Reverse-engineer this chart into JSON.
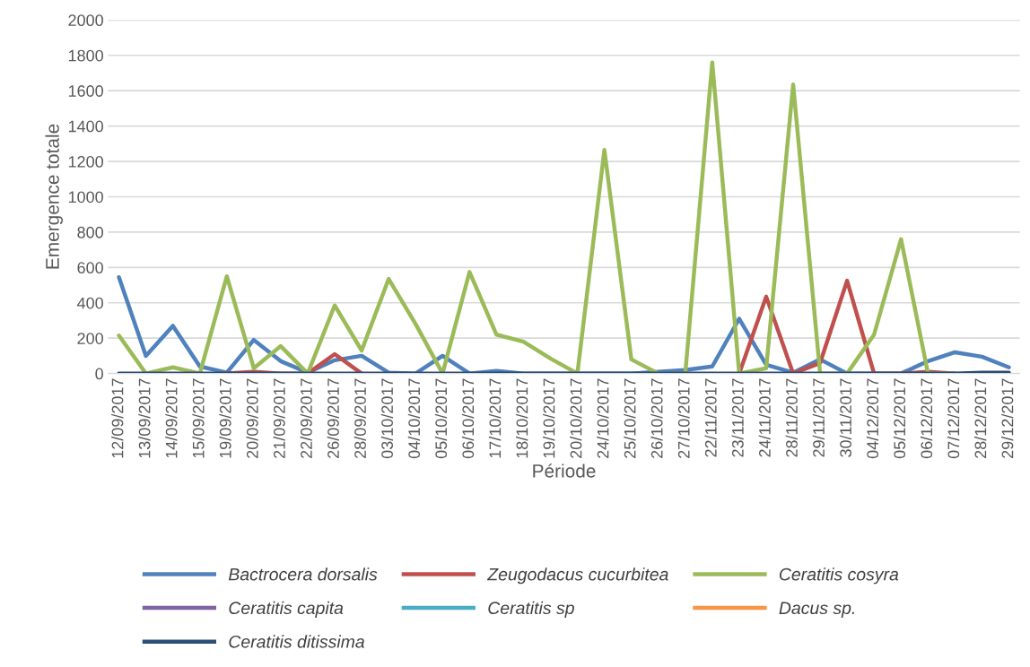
{
  "chart_data": {
    "type": "line",
    "xlabel": "Période",
    "ylabel": "Emergence totale",
    "categories": [
      "12/09/2017",
      "13/09/2017",
      "14/09/2017",
      "15/09/2017",
      "19/09/2017",
      "20/09/2017",
      "21/09/2017",
      "22/09/2017",
      "26/09/2017",
      "28/09/2017",
      "03/10/2017",
      "04/10/2017",
      "05/10/2017",
      "06/10/2017",
      "17/10/2017",
      "18/10/2017",
      "19/10/2017",
      "20/10/2017",
      "24/10/2017",
      "25/10/2017",
      "26/10/2017",
      "27/10/2017",
      "22/11/2017",
      "23/11/2017",
      "24/11/2017",
      "28/11/2017",
      "29/11/2017",
      "30/11/2017",
      "04/12/2017",
      "05/12/2017",
      "06/12/2017",
      "07/12/2017",
      "28/12/2017",
      "29/12/2017"
    ],
    "series": [
      {
        "name": "Bactrocera dorsalis",
        "color": "#4f81bd",
        "values": [
          545,
          100,
          270,
          40,
          5,
          190,
          70,
          5,
          75,
          100,
          5,
          0,
          100,
          0,
          15,
          0,
          0,
          0,
          0,
          0,
          10,
          20,
          40,
          310,
          50,
          5,
          80,
          0,
          0,
          0,
          70,
          120,
          95,
          35
        ]
      },
      {
        "name": "Zeugodacus cucurbitea",
        "color": "#c0504d",
        "values": [
          null,
          null,
          null,
          null,
          0,
          10,
          0,
          0,
          110,
          0,
          null,
          null,
          null,
          null,
          null,
          null,
          null,
          null,
          null,
          null,
          null,
          null,
          null,
          0,
          435,
          0,
          60,
          525,
          0,
          0,
          10,
          0,
          null,
          null
        ]
      },
      {
        "name": "Ceratitis cosyra",
        "color": "#9bbb59",
        "values": [
          215,
          0,
          35,
          0,
          550,
          30,
          155,
          0,
          385,
          130,
          535,
          280,
          0,
          575,
          220,
          180,
          85,
          0,
          1265,
          80,
          0,
          0,
          1760,
          0,
          30,
          1635,
          0,
          0,
          220,
          760,
          0,
          0,
          null,
          null
        ]
      },
      {
        "name": "Ceratitis capita",
        "color": "#8064a2",
        "values": [
          null,
          null,
          null,
          null,
          null,
          null,
          null,
          null,
          null,
          null,
          null,
          null,
          null,
          null,
          null,
          null,
          null,
          null,
          null,
          null,
          null,
          null,
          null,
          null,
          null,
          null,
          null,
          null,
          null,
          null,
          null,
          null,
          null,
          null
        ]
      },
      {
        "name": "Ceratitis sp",
        "color": "#4bacc6",
        "values": [
          null,
          null,
          null,
          null,
          null,
          null,
          null,
          null,
          null,
          null,
          null,
          null,
          null,
          null,
          null,
          null,
          null,
          null,
          null,
          null,
          null,
          null,
          null,
          null,
          null,
          null,
          null,
          null,
          null,
          null,
          null,
          null,
          null,
          null
        ]
      },
      {
        "name": "Dacus sp.",
        "color": "#f79646",
        "values": [
          null,
          null,
          null,
          null,
          null,
          null,
          null,
          null,
          null,
          null,
          null,
          null,
          null,
          null,
          null,
          null,
          null,
          null,
          null,
          null,
          null,
          null,
          null,
          null,
          null,
          null,
          null,
          null,
          null,
          null,
          null,
          null,
          null,
          null
        ]
      },
      {
        "name": "Ceratitis ditissima",
        "color": "#2c4d75",
        "values": [
          0,
          0,
          0,
          0,
          0,
          0,
          0,
          0,
          0,
          0,
          0,
          0,
          0,
          0,
          0,
          0,
          0,
          0,
          0,
          0,
          0,
          0,
          0,
          0,
          0,
          0,
          0,
          0,
          0,
          0,
          0,
          0,
          5,
          5
        ]
      }
    ],
    "ylim": [
      0,
      2000
    ],
    "yticks": [
      0,
      200,
      400,
      600,
      800,
      1000,
      1200,
      1400,
      1600,
      1800,
      2000
    ],
    "grid": "y",
    "legend": "bottom",
    "marker": "none",
    "line_style": "solid"
  }
}
